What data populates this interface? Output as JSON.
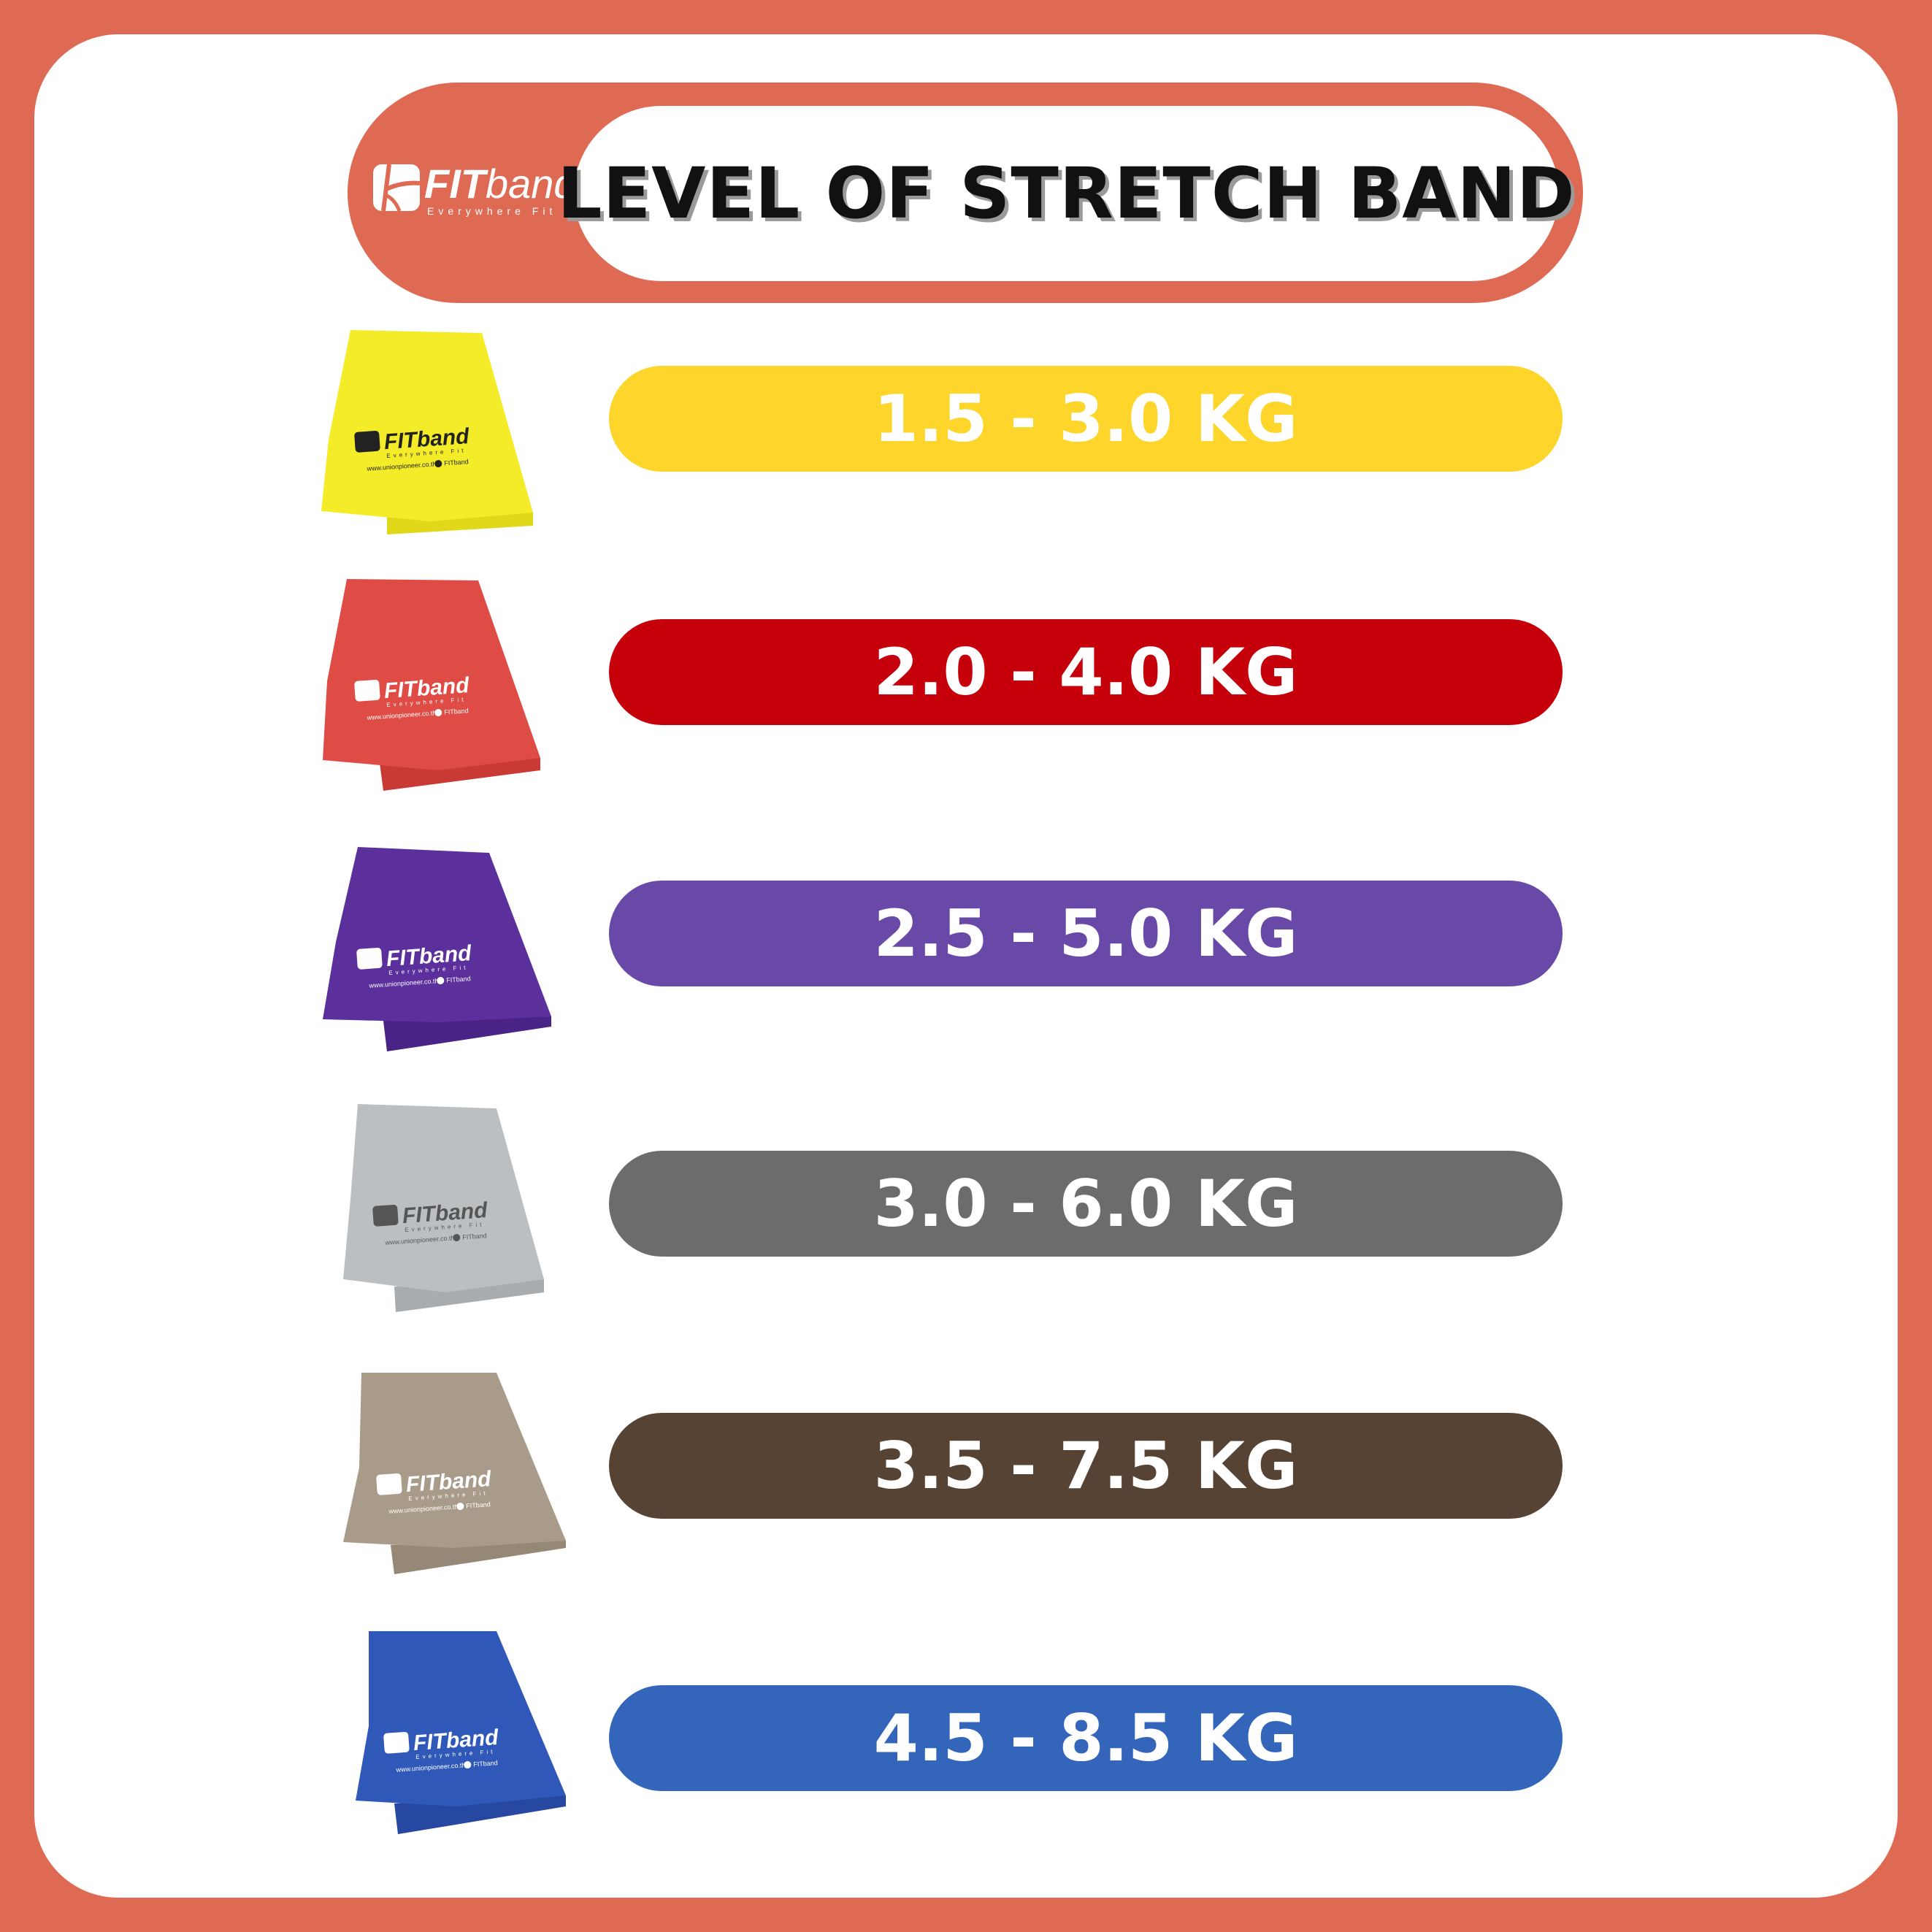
{
  "header": {
    "title": "LEVEL OF STRETCH BAND",
    "logo": {
      "brand_bold": "FIT",
      "brand_light": "band",
      "tagline": "Everywhere Fit"
    }
  },
  "band_print": {
    "brand": "FITband",
    "tagline": "Everywhere Fit",
    "website": "www.unionpioneer.co.th",
    "facebook": "FITband"
  },
  "levels": [
    {
      "label": "1.5 - 3.0 KG",
      "pill_color": "#FDD52B",
      "band_color": "#F4EC28",
      "band_shade": "#E2D81A",
      "print_color": "#222222"
    },
    {
      "label": "2.0 - 4.0 KG",
      "pill_color": "#C5000B",
      "band_color": "#DE4C45",
      "band_shade": "#C93A34",
      "print_color": "#ffffff"
    },
    {
      "label": "2.5 - 5.0 KG",
      "pill_color": "#6949A8",
      "band_color": "#5B2F9C",
      "band_shade": "#4A2386",
      "print_color": "#ffffff"
    },
    {
      "label": "3.0 - 6.0 KG",
      "pill_color": "#6C6C6C",
      "band_color": "#BCBFC2",
      "band_shade": "#A9ACAF",
      "print_color": "#555555"
    },
    {
      "label": "3.5 - 7.5 KG",
      "pill_color": "#574334",
      "band_color": "#A99B89",
      "band_shade": "#968876",
      "print_color": "#ffffff"
    },
    {
      "label": "4.5 - 8.5 KG",
      "pill_color": "#3366BB",
      "band_color": "#2F58B8",
      "band_shade": "#2648A0",
      "print_color": "#ffffff"
    }
  ],
  "colors": {
    "frame": "#DE6A54",
    "card": "#FFFFFF"
  }
}
